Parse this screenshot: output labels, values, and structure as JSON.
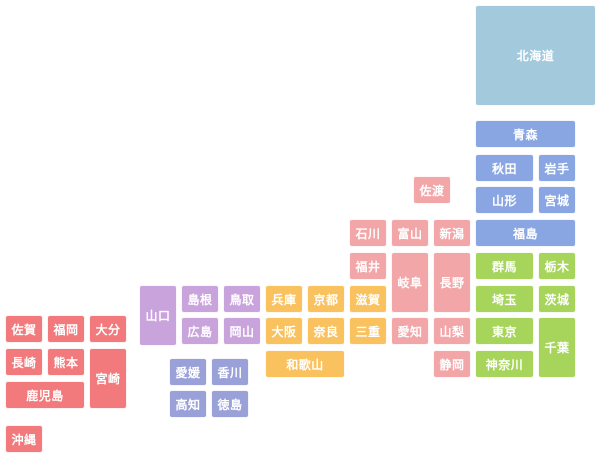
{
  "regions": {
    "hokkaido": {
      "color": "#a3c9dc"
    },
    "tohoku": {
      "color": "#8aa6e2"
    },
    "kanto": {
      "color": "#a7d45b"
    },
    "chubu": {
      "color": "#f2a6a8"
    },
    "kinki": {
      "color": "#f9c25e"
    },
    "chugoku": {
      "color": "#c9a3dc"
    },
    "shikoku": {
      "color": "#9aa0d8"
    },
    "kyushu": {
      "color": "#f2797c"
    }
  },
  "prefectures": [
    {
      "id": "hokkaido",
      "name": "北海道",
      "region": "hokkaido"
    },
    {
      "id": "aomori",
      "name": "青森",
      "region": "tohoku"
    },
    {
      "id": "akita",
      "name": "秋田",
      "region": "tohoku"
    },
    {
      "id": "iwate",
      "name": "岩手",
      "region": "tohoku"
    },
    {
      "id": "yamagata",
      "name": "山形",
      "region": "tohoku"
    },
    {
      "id": "miyagi",
      "name": "宮城",
      "region": "tohoku"
    },
    {
      "id": "fukushima",
      "name": "福島",
      "region": "tohoku"
    },
    {
      "id": "sado",
      "name": "佐渡",
      "region": "chubu"
    },
    {
      "id": "ishikawa",
      "name": "石川",
      "region": "chubu"
    },
    {
      "id": "toyama",
      "name": "富山",
      "region": "chubu"
    },
    {
      "id": "niigata",
      "name": "新潟",
      "region": "chubu"
    },
    {
      "id": "fukui",
      "name": "福井",
      "region": "chubu"
    },
    {
      "id": "gifu",
      "name": "岐阜",
      "region": "chubu"
    },
    {
      "id": "nagano",
      "name": "長野",
      "region": "chubu"
    },
    {
      "id": "aichi",
      "name": "愛知",
      "region": "chubu"
    },
    {
      "id": "yamanashi",
      "name": "山梨",
      "region": "chubu"
    },
    {
      "id": "shizuoka",
      "name": "静岡",
      "region": "chubu"
    },
    {
      "id": "gunma",
      "name": "群馬",
      "region": "kanto"
    },
    {
      "id": "tochigi",
      "name": "栃木",
      "region": "kanto"
    },
    {
      "id": "saitama",
      "name": "埼玉",
      "region": "kanto"
    },
    {
      "id": "ibaraki",
      "name": "茨城",
      "region": "kanto"
    },
    {
      "id": "tokyo",
      "name": "東京",
      "region": "kanto"
    },
    {
      "id": "chiba",
      "name": "千葉",
      "region": "kanto"
    },
    {
      "id": "kanagawa",
      "name": "神奈川",
      "region": "kanto"
    },
    {
      "id": "shiga",
      "name": "滋賀",
      "region": "kinki"
    },
    {
      "id": "mie",
      "name": "三重",
      "region": "kinki"
    },
    {
      "id": "hyogo",
      "name": "兵庫",
      "region": "kinki"
    },
    {
      "id": "kyoto",
      "name": "京都",
      "region": "kinki"
    },
    {
      "id": "osaka",
      "name": "大阪",
      "region": "kinki"
    },
    {
      "id": "nara",
      "name": "奈良",
      "region": "kinki"
    },
    {
      "id": "wakayama",
      "name": "和歌山",
      "region": "kinki"
    },
    {
      "id": "yamaguchi",
      "name": "山口",
      "region": "chugoku"
    },
    {
      "id": "shimane",
      "name": "島根",
      "region": "chugoku"
    },
    {
      "id": "tottori",
      "name": "鳥取",
      "region": "chugoku"
    },
    {
      "id": "hiroshima",
      "name": "広島",
      "region": "chugoku"
    },
    {
      "id": "okayama",
      "name": "岡山",
      "region": "chugoku"
    },
    {
      "id": "ehime",
      "name": "愛媛",
      "region": "shikoku"
    },
    {
      "id": "kagawa",
      "name": "香川",
      "region": "shikoku"
    },
    {
      "id": "kochi",
      "name": "高知",
      "region": "shikoku"
    },
    {
      "id": "tokushima",
      "name": "徳島",
      "region": "shikoku"
    },
    {
      "id": "saga",
      "name": "佐賀",
      "region": "kyushu"
    },
    {
      "id": "fukuoka",
      "name": "福岡",
      "region": "kyushu"
    },
    {
      "id": "oita",
      "name": "大分",
      "region": "kyushu"
    },
    {
      "id": "nagasaki",
      "name": "長崎",
      "region": "kyushu"
    },
    {
      "id": "kumamoto",
      "name": "熊本",
      "region": "kyushu"
    },
    {
      "id": "miyazaki",
      "name": "宮崎",
      "region": "kyushu"
    },
    {
      "id": "kagoshima",
      "name": "鹿児島",
      "region": "kyushu"
    },
    {
      "id": "okinawa",
      "name": "沖縄",
      "region": "kyushu"
    }
  ]
}
